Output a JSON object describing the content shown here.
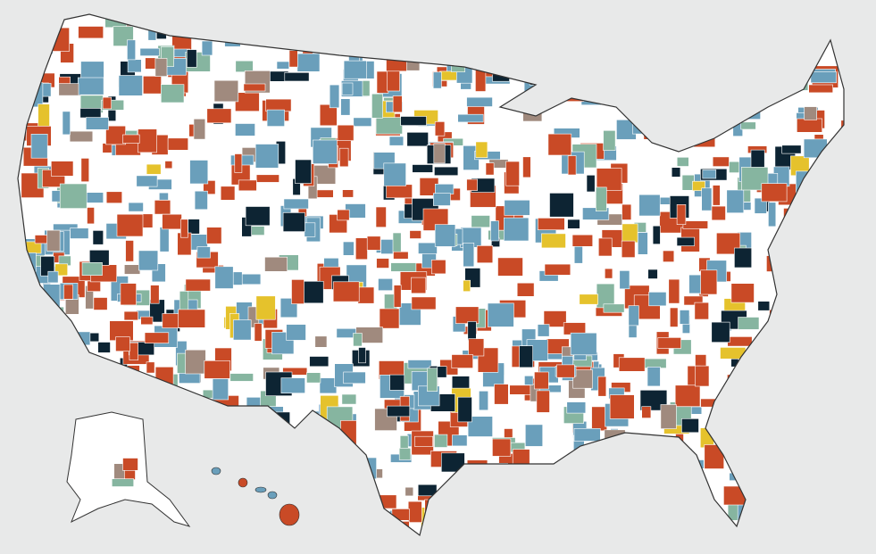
{
  "map": {
    "background_color": "#e8e9e9",
    "land_color": "#ffffff",
    "border_color": "#333333",
    "palette": [
      "#c94a26",
      "#6a9fbb",
      "#0d2433",
      "#86b5a0",
      "#a08a7e",
      "#e5c22c"
    ]
  }
}
